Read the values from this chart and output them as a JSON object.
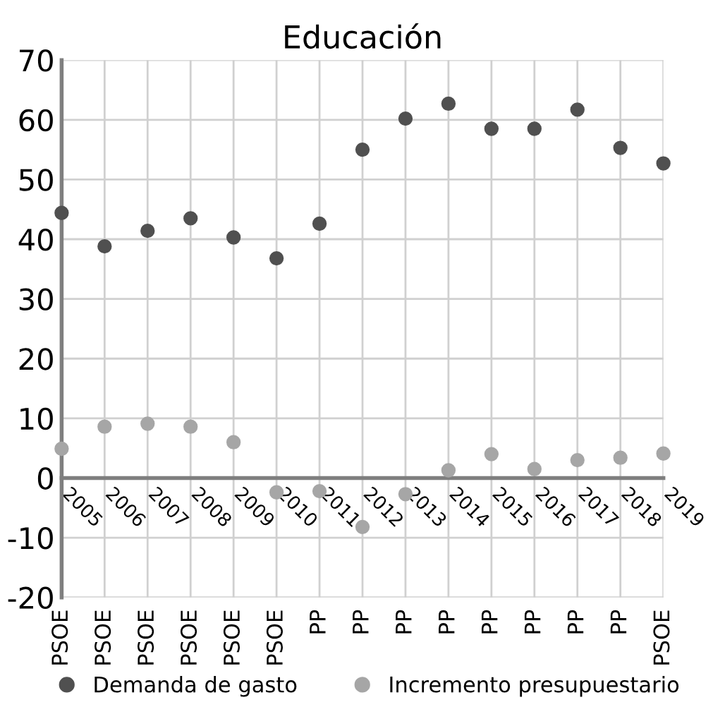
{
  "chart_data": {
    "type": "scatter",
    "title": "Educación",
    "categories": [
      "2005",
      "2006",
      "2007",
      "2008",
      "2009",
      "2010",
      "2011",
      "2012",
      "2013",
      "2014",
      "2015",
      "2016",
      "2017",
      "2018",
      "2019"
    ],
    "series": [
      {
        "name": "Demanda de gasto",
        "color": "#505050",
        "values": [
          44.4,
          38.8,
          41.4,
          43.5,
          40.3,
          36.8,
          42.6,
          55.0,
          60.2,
          62.7,
          58.5,
          58.5,
          61.7,
          55.3,
          52.7
        ]
      },
      {
        "name": "Incremento presupuestario",
        "color": "#a6a6a6",
        "values": [
          4.9,
          8.6,
          9.1,
          8.6,
          6.0,
          -2.4,
          -2.2,
          -8.2,
          -2.7,
          1.3,
          4.0,
          1.5,
          3.0,
          3.4,
          4.1
        ]
      }
    ],
    "annotations": [
      "PSOE",
      "PSOE",
      "PSOE",
      "PSOE",
      "PSOE",
      "PSOE",
      "PP",
      "PP",
      "PP",
      "PP",
      "PP",
      "PP",
      "PP",
      "PP",
      "PSOE"
    ],
    "ylim": [
      -20,
      70
    ],
    "yticks": [
      -20,
      -10,
      0,
      10,
      20,
      30,
      40,
      50,
      60,
      70
    ],
    "grid": true,
    "legend": "bottom",
    "marker": "circle"
  }
}
